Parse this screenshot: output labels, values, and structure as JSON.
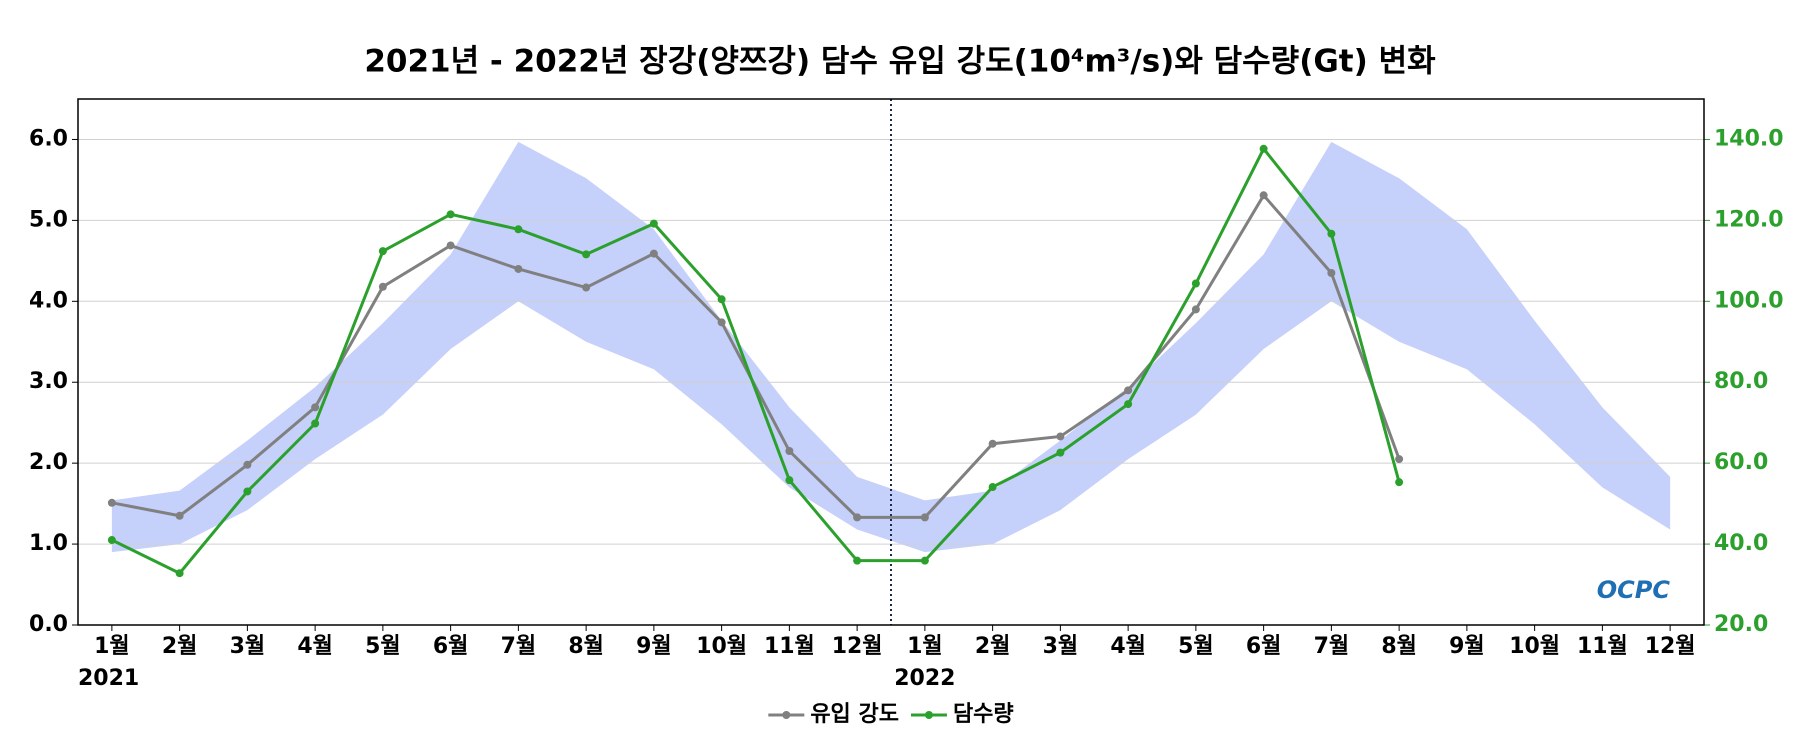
{
  "chart_data": {
    "type": "line",
    "title": "2021년 - 2022년 장강(양쯔강) 담수 유입 강도(10⁴m³/s)와 담수량(Gt) 변화",
    "categories": [
      "1월",
      "2월",
      "3월",
      "4월",
      "5월",
      "6월",
      "7월",
      "8월",
      "9월",
      "10월",
      "11월",
      "12월",
      "1월",
      "2월",
      "3월",
      "4월",
      "5월",
      "6월",
      "7월",
      "8월",
      "9월",
      "10월",
      "11월",
      "12월"
    ],
    "year_labels": [
      "2021",
      "2022"
    ],
    "series": [
      {
        "name": "유입 강도",
        "color": "#808080",
        "values": [
          1.51,
          1.35,
          1.98,
          2.69,
          4.18,
          4.69,
          4.4,
          4.17,
          4.59,
          3.74,
          2.15,
          1.33,
          1.33,
          2.24,
          2.33,
          2.9,
          3.9,
          5.31,
          4.35,
          2.05,
          null,
          null,
          null,
          null
        ]
      },
      {
        "name": "담수량",
        "color": "#2ca02c",
        "axis": "y2",
        "values": [
          41.0,
          32.8,
          53.0,
          69.8,
          112.4,
          121.5,
          117.8,
          111.6,
          119.2,
          100.5,
          55.8,
          35.9,
          35.9,
          54.1,
          62.6,
          74.6,
          104.4,
          137.7,
          116.7,
          55.3,
          null,
          null,
          null,
          null
        ]
      }
    ],
    "band": {
      "color": "#c5d0fb",
      "upper": [
        1.54,
        1.66,
        2.28,
        2.94,
        3.73,
        4.58,
        5.97,
        5.52,
        4.89,
        3.76,
        2.69,
        1.83,
        1.54,
        1.66,
        2.28,
        2.94,
        3.73,
        4.58,
        5.97,
        5.52,
        4.89,
        3.76,
        2.69,
        1.83
      ],
      "lower": [
        0.9,
        1.0,
        1.42,
        2.05,
        2.6,
        3.41,
        4.0,
        3.5,
        3.16,
        2.48,
        1.7,
        1.18,
        0.9,
        1.0,
        1.42,
        2.05,
        2.6,
        3.41,
        4.0,
        3.5,
        3.16,
        2.48,
        1.7,
        1.18
      ]
    },
    "ylim": [
      0,
      6.5
    ],
    "yticks": [
      {
        "value": 0,
        "label": "0.0"
      },
      {
        "value": 1,
        "label": "1.0"
      },
      {
        "value": 2,
        "label": "2.0"
      },
      {
        "value": 3,
        "label": "3.0"
      },
      {
        "value": 4,
        "label": "4.0"
      },
      {
        "value": 5,
        "label": "5.0"
      },
      {
        "value": 6,
        "label": "6.0"
      }
    ],
    "y2lim": [
      20,
      150
    ],
    "y2ticks": [
      {
        "value": 20,
        "label": "20.0"
      },
      {
        "value": 40,
        "label": "40.0"
      },
      {
        "value": 60,
        "label": "60.0"
      },
      {
        "value": 80,
        "label": "80.0"
      },
      {
        "value": 100,
        "label": "100.0"
      },
      {
        "value": 120,
        "label": "120.0"
      },
      {
        "value": 140,
        "label": "140.0"
      }
    ],
    "y2_color": "#2ca02c",
    "grid": true,
    "legend": "bottom",
    "logo": "OCPC"
  }
}
